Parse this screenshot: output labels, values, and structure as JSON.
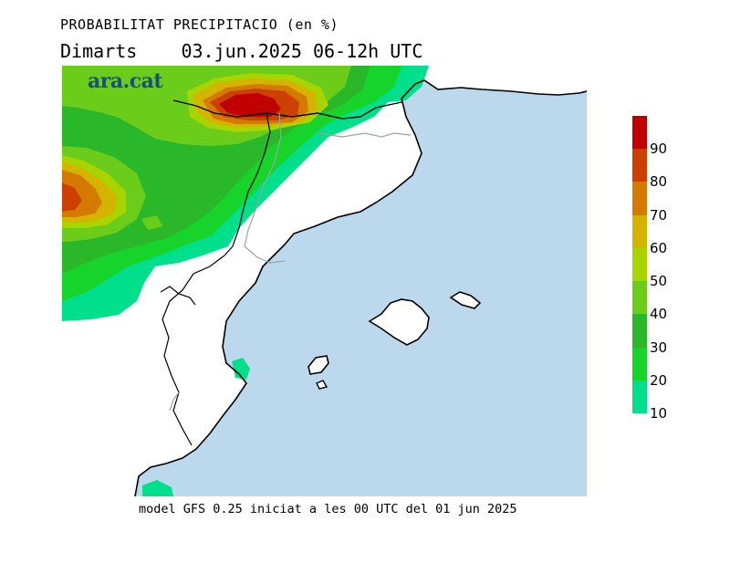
{
  "header": {
    "title": "PROBABILITAT PRECIPITACIO (en %)",
    "subtitle": "Dimarts    03.jun.2025 06-12h UTC"
  },
  "brand": "ara.cat",
  "footer": "model GFS 0.25 iniciat a les 00 UTC del 01 jun 2025",
  "legend": {
    "labels": [
      "90",
      "80",
      "70",
      "60",
      "50",
      "40",
      "30",
      "20",
      "10"
    ],
    "colors": [
      "#c00000",
      "#cc4000",
      "#d47a00",
      "#d4b400",
      "#a8d400",
      "#6ccc1a",
      "#2ab82a",
      "#16d42a",
      "#00e08c"
    ]
  },
  "colors": {
    "sea": "#bcd8ec",
    "land": "#ffffff",
    "coast": "#000000",
    "border": "#a0a0a0"
  }
}
